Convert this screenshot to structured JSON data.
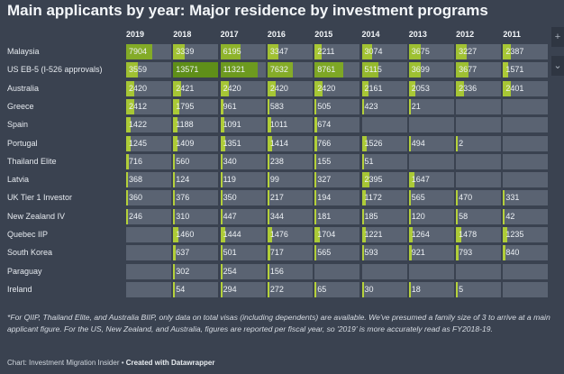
{
  "chart_data": {
    "type": "table",
    "title": "Main applicants by year: Major residence by investment programs",
    "columns": [
      "2019",
      "2018",
      "2017",
      "2016",
      "2015",
      "2014",
      "2013",
      "2012",
      "2011"
    ],
    "rows": [
      {
        "label": "Malaysia",
        "values": [
          7904,
          3339,
          6195,
          3347,
          2211,
          3074,
          3675,
          3227,
          2387
        ]
      },
      {
        "label": "US EB-5 (I-526 approvals)",
        "values": [
          3559,
          13571,
          11321,
          7632,
          8761,
          5115,
          3699,
          3677,
          1571
        ]
      },
      {
        "label": "Australia",
        "values": [
          2420,
          2421,
          2420,
          2420,
          2420,
          2161,
          2053,
          2336,
          2401
        ]
      },
      {
        "label": "Greece",
        "values": [
          2412,
          1795,
          961,
          583,
          505,
          423,
          21,
          null,
          null
        ]
      },
      {
        "label": "Spain",
        "values": [
          1422,
          1188,
          1091,
          1011,
          674,
          null,
          null,
          null,
          null
        ]
      },
      {
        "label": "Portugal",
        "values": [
          1245,
          1409,
          1351,
          1414,
          766,
          1526,
          494,
          2,
          null
        ]
      },
      {
        "label": "Thailand Elite",
        "values": [
          716,
          560,
          340,
          238,
          155,
          51,
          null,
          null,
          null
        ]
      },
      {
        "label": "Latvia",
        "values": [
          368,
          124,
          119,
          99,
          327,
          2395,
          1647,
          null,
          null
        ]
      },
      {
        "label": "UK Tier 1 Investor",
        "values": [
          360,
          376,
          350,
          217,
          194,
          1172,
          565,
          470,
          331
        ]
      },
      {
        "label": "New Zealand IV",
        "values": [
          246,
          310,
          447,
          344,
          181,
          185,
          120,
          58,
          42
        ]
      },
      {
        "label": "Quebec IIP",
        "values": [
          null,
          1460,
          1444,
          1476,
          1704,
          1221,
          1264,
          1478,
          1235
        ]
      },
      {
        "label": "South Korea",
        "values": [
          null,
          637,
          501,
          717,
          565,
          593,
          921,
          793,
          840
        ]
      },
      {
        "label": "Paraguay",
        "values": [
          null,
          302,
          254,
          156,
          null,
          null,
          null,
          null,
          null
        ]
      },
      {
        "label": "Ireland",
        "values": [
          null,
          54,
          294,
          272,
          65,
          30,
          18,
          5,
          null
        ]
      }
    ],
    "max_value": 13571,
    "colors": {
      "background": "#3a4250",
      "cell": "#5a6372",
      "bar_low": "#b6d23b",
      "bar_high": "#5f8f19"
    }
  },
  "footnote": "*For QIIP, Thailand Elite, and Australia BIIP, only data on total visas (including dependents) are available. We've presumed a family size of 3 to arrive at a main applicant figure. For the US, New Zealand, and Australia, figures are reported per fiscal year, so '2019' is more accurately read as FY2018-19.",
  "source_prefix": "Chart: Investment Migration Insider • ",
  "source_credit": "Created with Datawrapper",
  "side_icons": [
    "plus-icon",
    "gear-icon",
    "chevron-down-icon"
  ]
}
